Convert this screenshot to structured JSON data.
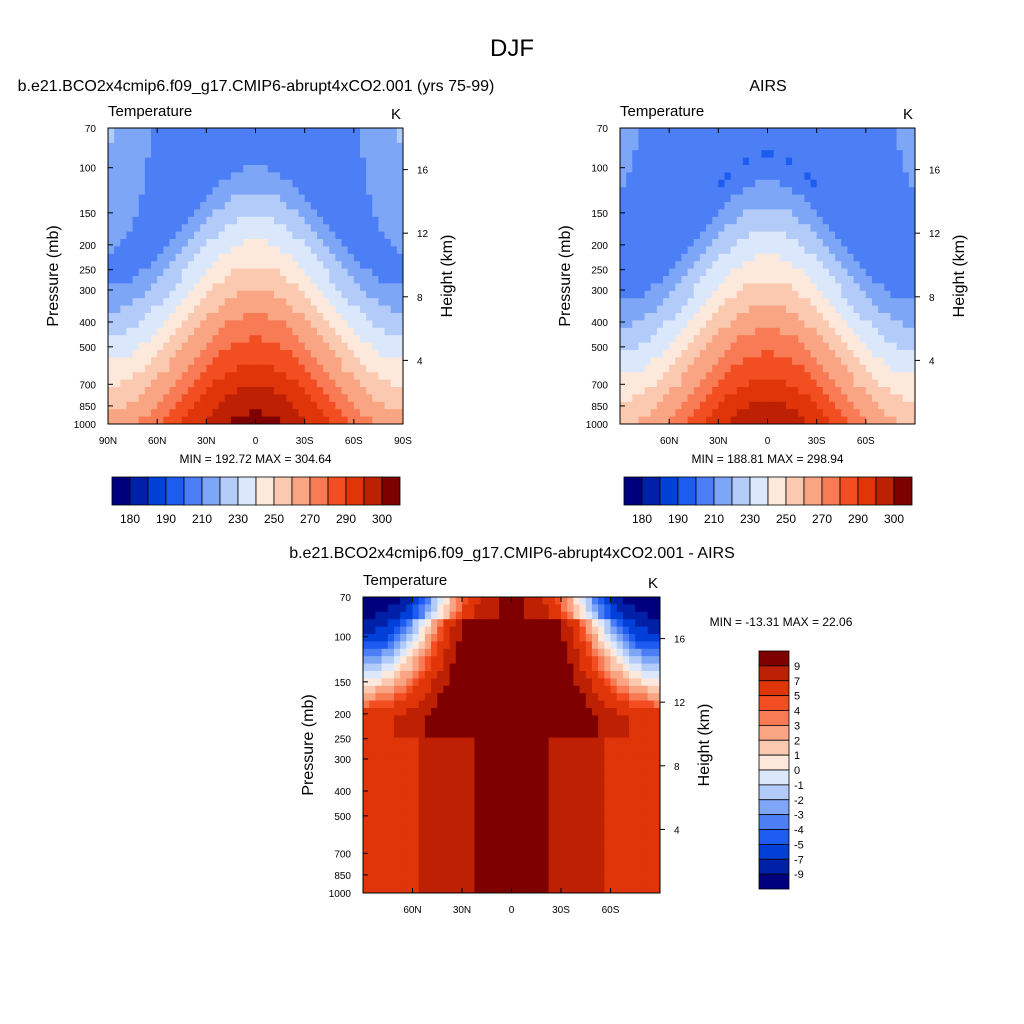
{
  "figure": {
    "title": "DJF"
  },
  "colors": {
    "absolute": [
      "#00007f",
      "#0020a8",
      "#0040d8",
      "#1c5cf0",
      "#4c7ef5",
      "#7ea6f7",
      "#b2cbf9",
      "#dbe8fb",
      "#fde8dc",
      "#fbc9b0",
      "#f9a482",
      "#f87b55",
      "#f24e22",
      "#e03508",
      "#bd2003",
      "#7f0000"
    ],
    "difference": [
      "#00007f",
      "#0020a8",
      "#0040d8",
      "#1c5cf0",
      "#4c7ef5",
      "#7ea6f7",
      "#b2cbf9",
      "#dbe8fb",
      "#fde8dc",
      "#fbc9b0",
      "#f9a482",
      "#f87b55",
      "#f24e22",
      "#e03508",
      "#bd2003",
      "#7f0000"
    ]
  },
  "chart_data": [
    {
      "type": "heatmap",
      "title": "b.e21.BCO2x4cmip6.f09_g17.CMIP6-abrupt4xCO2.001 (yrs 75-99)",
      "left_label": "Temperature",
      "right_label": "K",
      "ylabel": "Pressure (mb)",
      "ylabel_right": "Height (km)",
      "x_ticks": [
        "90N",
        "60N",
        "30N",
        "0",
        "30S",
        "60S",
        "90S"
      ],
      "y_ticks": [
        "70",
        "100",
        "150",
        "200",
        "250",
        "300",
        "400",
        "500",
        "700",
        "850",
        "1000"
      ],
      "height_ticks": [
        "16",
        "12",
        "8",
        "4"
      ],
      "stats": "MIN = 192.72  MAX = 304.64",
      "min": 192.72,
      "max": 304.64,
      "colorbar_labels": [
        "180",
        "190",
        "210",
        "230",
        "250",
        "270",
        "290",
        "300"
      ],
      "levels": [
        175,
        180,
        185,
        190,
        200,
        210,
        220,
        230,
        240,
        250,
        260,
        270,
        280,
        290,
        300
      ]
    },
    {
      "type": "heatmap",
      "title": "AIRS",
      "left_label": "Temperature",
      "right_label": "K",
      "ylabel": "Pressure (mb)",
      "ylabel_right": "Height (km)",
      "x_ticks": [
        "60N",
        "30N",
        "0",
        "30S",
        "60S"
      ],
      "y_ticks": [
        "70",
        "100",
        "150",
        "200",
        "250",
        "300",
        "400",
        "500",
        "700",
        "850",
        "1000"
      ],
      "height_ticks": [
        "16",
        "12",
        "8",
        "4"
      ],
      "stats": "MIN = 188.81  MAX = 298.94",
      "min": 188.81,
      "max": 298.94,
      "colorbar_labels": [
        "180",
        "190",
        "210",
        "230",
        "250",
        "270",
        "290",
        "300"
      ],
      "levels": [
        175,
        180,
        185,
        190,
        200,
        210,
        220,
        230,
        240,
        250,
        260,
        270,
        280,
        290,
        300
      ]
    },
    {
      "type": "heatmap",
      "title": "b.e21.BCO2x4cmip6.f09_g17.CMIP6-abrupt4xCO2.001 - AIRS",
      "left_label": "Temperature",
      "right_label": "K",
      "ylabel": "Pressure (mb)",
      "ylabel_right": "Height (km)",
      "x_ticks": [
        "60N",
        "30N",
        "0",
        "30S",
        "60S"
      ],
      "y_ticks": [
        "70",
        "100",
        "150",
        "200",
        "250",
        "300",
        "400",
        "500",
        "700",
        "850",
        "1000"
      ],
      "height_ticks": [
        "16",
        "12",
        "8",
        "4"
      ],
      "stats": "MIN = -13.31  MAX =  22.06",
      "min": -13.31,
      "max": 22.06,
      "colorbar_labels": [
        "9",
        "7",
        "5",
        "4",
        "3",
        "2",
        "1",
        "0",
        "-1",
        "-2",
        "-3",
        "-4",
        "-5",
        "-7",
        "-9"
      ],
      "levels": [
        -9,
        -7,
        -5,
        -4,
        -3,
        -2,
        -1,
        0,
        1,
        2,
        3,
        4,
        5,
        7,
        9
      ]
    }
  ]
}
